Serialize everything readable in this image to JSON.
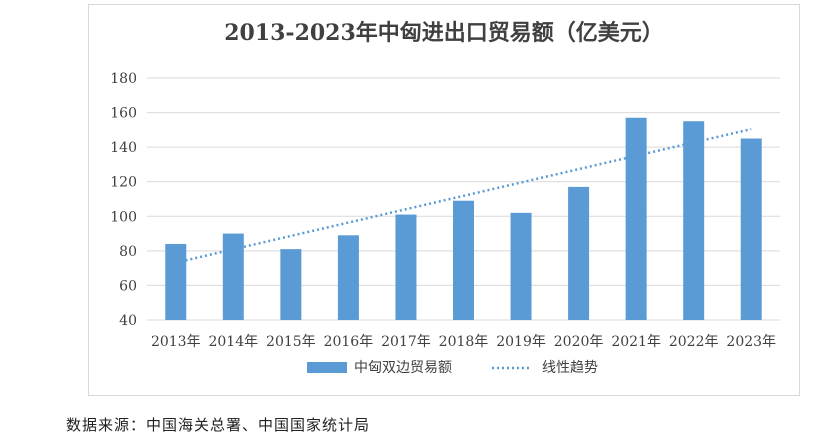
{
  "source_note": "数据来源：中国海关总署、中国国家统计局",
  "colors": {
    "bar": "#5b9bd5",
    "trend": "#5b9bd5",
    "grid": "#d9d9d9",
    "axis_text": "#404040"
  },
  "chart_data": {
    "type": "bar",
    "title": "2013-2023年中匈进出口贸易额（亿美元）",
    "categories": [
      "2013年",
      "2014年",
      "2015年",
      "2016年",
      "2017年",
      "2018年",
      "2019年",
      "2020年",
      "2021年",
      "2022年",
      "2023年"
    ],
    "series": [
      {
        "name": "中匈双边贸易额",
        "values": [
          84,
          90,
          81,
          89,
          101,
          109,
          102,
          117,
          157,
          155,
          145
        ]
      }
    ],
    "trendline": {
      "name": "线性趋势",
      "type": "linear",
      "style": "dotted"
    },
    "ylim": [
      40,
      180
    ],
    "yticks": [
      40,
      60,
      80,
      100,
      120,
      140,
      160,
      180
    ],
    "grid": true,
    "legend_position": "bottom",
    "xlabel": "",
    "ylabel": ""
  }
}
